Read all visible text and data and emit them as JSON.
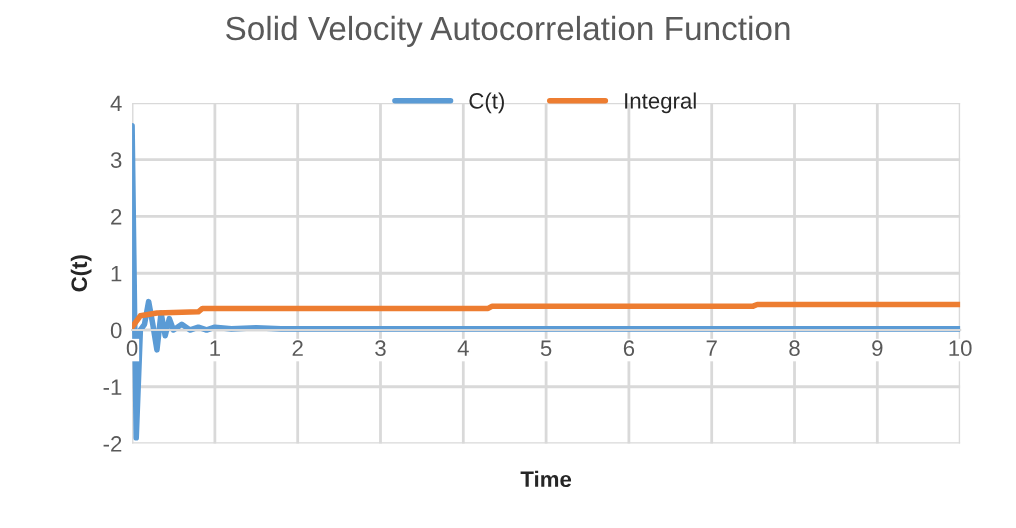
{
  "chart_data": {
    "type": "line",
    "title": "Solid Velocity Autocorrelation Function",
    "xlabel": "Time",
    "ylabel": "C(t)",
    "xlim": [
      0,
      10
    ],
    "xticks": [
      0,
      1,
      2,
      3,
      4,
      5,
      6,
      7,
      8,
      9,
      10
    ],
    "ylim": [
      -2,
      4
    ],
    "yticks": [
      -2,
      -1,
      0,
      1,
      2,
      3,
      4
    ],
    "grid": true,
    "legend": "top",
    "marker": "none",
    "line_style": "solid",
    "series": [
      {
        "name": "C(t)",
        "color": "#5b9bd5",
        "x": [
          0,
          0.05,
          0.1,
          0.15,
          0.2,
          0.25,
          0.3,
          0.35,
          0.4,
          0.45,
          0.5,
          0.6,
          0.7,
          0.8,
          0.9,
          1.0,
          1.2,
          1.5,
          1.8,
          2.0,
          3.0,
          4.0,
          5.0,
          6.0,
          7.0,
          8.0,
          9.0,
          10.0
        ],
        "values": [
          3.6,
          -1.9,
          0.0,
          0.1,
          0.5,
          0.1,
          -0.35,
          0.3,
          -0.1,
          0.2,
          0.0,
          0.1,
          0.0,
          0.05,
          0.0,
          0.05,
          0.02,
          0.04,
          0.02,
          0.02,
          0.02,
          0.02,
          0.02,
          0.02,
          0.02,
          0.02,
          0.02,
          0.02
        ]
      },
      {
        "name": "Integral",
        "color": "#ed7d31",
        "x": [
          0,
          0.1,
          0.3,
          0.8,
          0.85,
          4.3,
          4.35,
          7.5,
          7.55,
          10
        ],
        "values": [
          0.05,
          0.25,
          0.3,
          0.32,
          0.38,
          0.38,
          0.42,
          0.42,
          0.45,
          0.45
        ]
      }
    ]
  }
}
